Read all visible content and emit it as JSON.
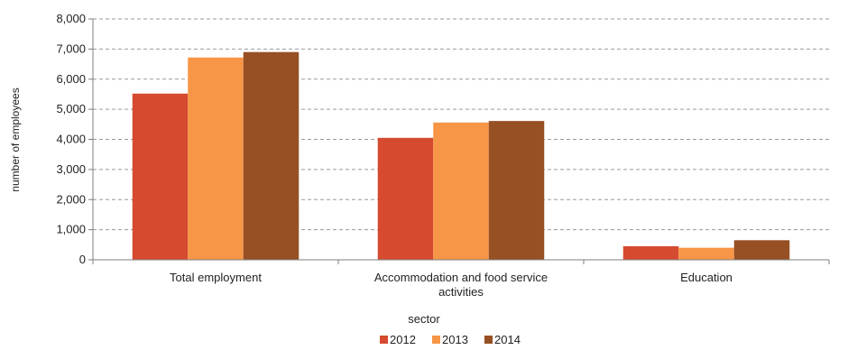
{
  "chart_data": {
    "type": "bar",
    "title": "",
    "xlabel": "sector",
    "ylabel": "number of employees",
    "ylim": [
      0,
      8000
    ],
    "yticks": [
      0,
      1000,
      2000,
      3000,
      4000,
      5000,
      6000,
      7000,
      8000
    ],
    "ytick_labels": [
      "0",
      "1,000",
      "2,000",
      "3,000",
      "4,000",
      "5,000",
      "6,000",
      "7,000",
      "8,000"
    ],
    "grid": "horizontal dashed",
    "legend_position": "bottom",
    "categories": [
      [
        "Total employment"
      ],
      [
        "Accommodation and food service",
        "activities"
      ],
      [
        "Education"
      ]
    ],
    "series": [
      {
        "name": "2012",
        "color": "#d64a2f",
        "values": [
          5520,
          4050,
          450
        ]
      },
      {
        "name": "2013",
        "color": "#f79646",
        "values": [
          6720,
          4560,
          400
        ]
      },
      {
        "name": "2014",
        "color": "#974f24",
        "values": [
          6900,
          4610,
          650
        ]
      }
    ]
  }
}
